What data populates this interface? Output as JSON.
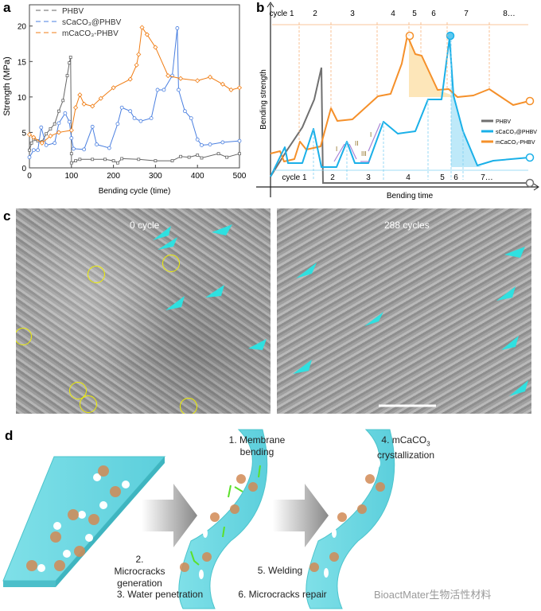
{
  "panels": {
    "a": "a",
    "b": "b",
    "c": "c",
    "d": "d"
  },
  "chart_data": {
    "type": "line",
    "xlabel": "Bending cycle (time)",
    "ylabel": "Strength (MPa)",
    "xlim": [
      0,
      500
    ],
    "ylim": [
      0,
      23
    ],
    "xticks": [
      0,
      100,
      200,
      300,
      400,
      500
    ],
    "yticks": [
      0,
      5,
      10,
      15,
      20
    ],
    "legend_position": "top-left",
    "series": [
      {
        "name": "PHBV",
        "color": "#666666",
        "marker": "square",
        "points": [
          [
            0,
            2.5
          ],
          [
            5,
            3.5
          ],
          [
            10,
            4
          ],
          [
            20,
            3.8
          ],
          [
            30,
            3.7
          ],
          [
            40,
            4.8
          ],
          [
            50,
            5.5
          ],
          [
            60,
            6.2
          ],
          [
            70,
            8
          ],
          [
            80,
            9.5
          ],
          [
            90,
            13
          ],
          [
            95,
            14.8
          ],
          [
            98,
            15.6
          ],
          [
            100,
            2
          ],
          [
            100,
            0.7
          ],
          [
            110,
            1
          ],
          [
            120,
            1.2
          ],
          [
            150,
            1.2
          ],
          [
            180,
            1.2
          ],
          [
            200,
            1
          ],
          [
            210,
            0.7
          ],
          [
            220,
            1.3
          ],
          [
            260,
            1.2
          ],
          [
            300,
            1
          ],
          [
            340,
            1
          ],
          [
            360,
            1.6
          ],
          [
            380,
            1.5
          ],
          [
            400,
            1.8
          ],
          [
            410,
            1.4
          ],
          [
            450,
            2
          ],
          [
            470,
            1.5
          ],
          [
            500,
            2
          ]
        ]
      },
      {
        "name": "sCaCO₃@PHBV",
        "color": "#4a7fe0",
        "marker": "circle",
        "points": [
          [
            0,
            1.5
          ],
          [
            10,
            2.5
          ],
          [
            20,
            2.5
          ],
          [
            28,
            5.7
          ],
          [
            40,
            3.2
          ],
          [
            60,
            3.5
          ],
          [
            70,
            6.3
          ],
          [
            85,
            7.7
          ],
          [
            95,
            6.5
          ],
          [
            100,
            4.2
          ],
          [
            105,
            2.7
          ],
          [
            130,
            2.6
          ],
          [
            150,
            5.8
          ],
          [
            160,
            3.3
          ],
          [
            190,
            2.8
          ],
          [
            210,
            6.2
          ],
          [
            220,
            8.5
          ],
          [
            240,
            8
          ],
          [
            250,
            7
          ],
          [
            265,
            6.6
          ],
          [
            290,
            7
          ],
          [
            305,
            11
          ],
          [
            320,
            11
          ],
          [
            340,
            13
          ],
          [
            352,
            19.7
          ],
          [
            355,
            11
          ],
          [
            370,
            8
          ],
          [
            385,
            7
          ],
          [
            400,
            4
          ],
          [
            410,
            3.2
          ],
          [
            430,
            3.3
          ],
          [
            460,
            3.6
          ],
          [
            500,
            3.8
          ]
        ]
      },
      {
        "name": "mCaCO₃-PHBV",
        "color": "#f07d14",
        "marker": "diamond",
        "points": [
          [
            0,
            4.7
          ],
          [
            10,
            4.3
          ],
          [
            30,
            3.5
          ],
          [
            50,
            4.5
          ],
          [
            70,
            5
          ],
          [
            100,
            5.3
          ],
          [
            110,
            8.5
          ],
          [
            120,
            10.3
          ],
          [
            130,
            9
          ],
          [
            150,
            8.7
          ],
          [
            170,
            9.8
          ],
          [
            200,
            11.3
          ],
          [
            240,
            12.5
          ],
          [
            255,
            14.5
          ],
          [
            260,
            16
          ],
          [
            268,
            19.8
          ],
          [
            280,
            18.8
          ],
          [
            300,
            17
          ],
          [
            330,
            13
          ],
          [
            360,
            12.6
          ],
          [
            400,
            12.3
          ],
          [
            430,
            12.8
          ],
          [
            460,
            11.8
          ],
          [
            480,
            11
          ],
          [
            500,
            11.3
          ]
        ]
      }
    ]
  },
  "schematic_b": {
    "ylabel": "Bending strength",
    "xlabel": "Bending time",
    "top_cycles": [
      "cycle 1",
      "2",
      "3",
      "4",
      "5",
      "6",
      "7",
      "8…"
    ],
    "bottom_cycles": [
      "cycle 1",
      "2",
      "3",
      "4",
      "5",
      "6",
      "7…"
    ],
    "stages": [
      "I",
      "II",
      "III",
      "I"
    ],
    "legend": [
      "PHBV",
      "sCaCO₃@PHBV",
      "mCaCO₃-PHBV"
    ],
    "colors": {
      "phbv": "#707070",
      "s": "#1ab0e8",
      "m": "#f5902a"
    }
  },
  "micrographs": {
    "left": "0 cycle",
    "right": "288 cycles"
  },
  "diagram_d": {
    "step1": "1. Membrane bending",
    "step2": "2. Microcracks generation",
    "step3": "3. Water penetration",
    "step4_pre": "4. mCaCO",
    "step4_sub": "3",
    "step4_post": "crystallization",
    "step5": "5. Welding",
    "step6": "6. Microcracks repair",
    "watermark": "BioactMater生物活性材料"
  }
}
